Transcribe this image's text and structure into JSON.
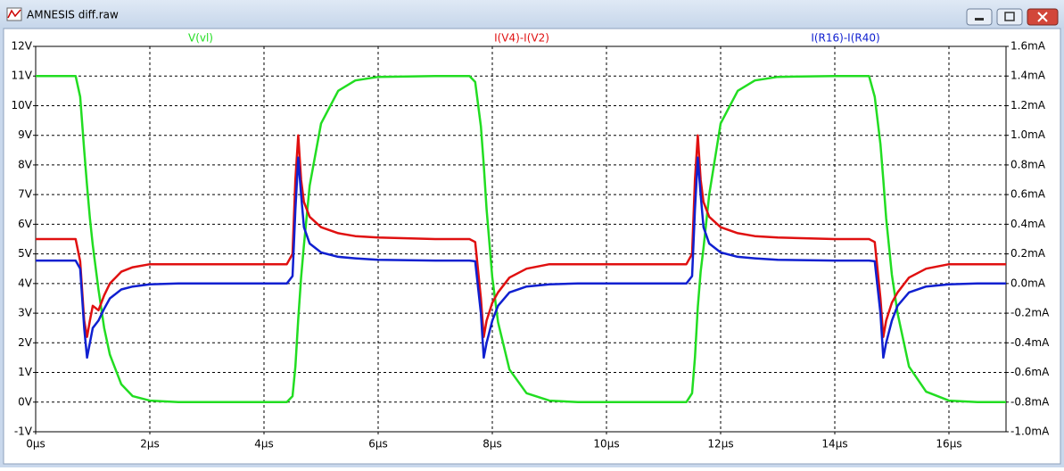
{
  "window": {
    "title": "AMNESIS diff.raw"
  },
  "chart_data": {
    "type": "line",
    "x": [
      0,
      0.7,
      0.78,
      0.85,
      0.9,
      0.95,
      1.0,
      1.1,
      1.2,
      1.3,
      1.5,
      1.7,
      2.0,
      2.5,
      3.0,
      4.4,
      4.5,
      4.55,
      4.6,
      4.65,
      4.7,
      4.8,
      5.0,
      5.3,
      5.6,
      6.0,
      7.0,
      7.6,
      7.7,
      7.8,
      7.85,
      7.9,
      8.0,
      8.1,
      8.3,
      8.6,
      9.0,
      9.5,
      10.0,
      11.4,
      11.5,
      11.55,
      11.6,
      11.65,
      11.7,
      11.8,
      12.0,
      12.3,
      12.6,
      13.0,
      14.0,
      14.6,
      14.7,
      14.8,
      14.85,
      14.9,
      15.0,
      15.1,
      15.3,
      15.6,
      16.0,
      16.5,
      17.0
    ],
    "series": [
      {
        "name": "V(vl)",
        "color": "#22dd22",
        "values": [
          11,
          11,
          10.3,
          8.5,
          7.3,
          6.2,
          5.3,
          3.8,
          2.5,
          1.6,
          0.6,
          0.2,
          0.05,
          0,
          0,
          0,
          0.2,
          1.2,
          2.8,
          4.2,
          5.3,
          7.3,
          9.4,
          10.5,
          10.85,
          10.97,
          11,
          11,
          10.8,
          9.3,
          8.0,
          6.5,
          4.2,
          2.7,
          1.1,
          0.3,
          0.05,
          0,
          0,
          0,
          0.3,
          1.5,
          3.2,
          4.4,
          5.2,
          7.0,
          9.4,
          10.5,
          10.85,
          10.97,
          11,
          11,
          10.3,
          8.7,
          7.5,
          6.2,
          4.3,
          3.0,
          1.2,
          0.35,
          0.05,
          0,
          0
        ]
      },
      {
        "name": "I(V4)-I(V2)",
        "color": "#e01010",
        "axis": "y2",
        "values": [
          0.3,
          0.3,
          0.15,
          -0.25,
          -0.36,
          -0.25,
          -0.15,
          -0.18,
          -0.08,
          0.0,
          0.08,
          0.11,
          0.13,
          0.13,
          0.13,
          0.13,
          0.2,
          0.7,
          1.0,
          0.7,
          0.55,
          0.45,
          0.38,
          0.34,
          0.32,
          0.31,
          0.3,
          0.3,
          0.28,
          -0.1,
          -0.36,
          -0.25,
          -0.13,
          -0.06,
          0.04,
          0.1,
          0.13,
          0.13,
          0.13,
          0.13,
          0.2,
          0.7,
          1.0,
          0.7,
          0.55,
          0.45,
          0.38,
          0.34,
          0.32,
          0.31,
          0.3,
          0.3,
          0.28,
          -0.1,
          -0.36,
          -0.25,
          -0.13,
          -0.06,
          0.04,
          0.1,
          0.13,
          0.13,
          0.13
        ]
      },
      {
        "name": "I(R16)-I(R40)",
        "color": "#1020d0",
        "axis": "y2",
        "values": [
          0.155,
          0.155,
          0.1,
          -0.3,
          -0.5,
          -0.4,
          -0.3,
          -0.25,
          -0.17,
          -0.1,
          -0.04,
          -0.02,
          -0.005,
          0,
          0,
          0,
          0.05,
          0.5,
          0.85,
          0.6,
          0.38,
          0.27,
          0.21,
          0.18,
          0.17,
          0.16,
          0.155,
          0.155,
          0.15,
          -0.2,
          -0.5,
          -0.4,
          -0.25,
          -0.15,
          -0.06,
          -0.02,
          -0.005,
          0,
          0,
          0,
          0.05,
          0.5,
          0.85,
          0.6,
          0.38,
          0.27,
          0.21,
          0.18,
          0.17,
          0.16,
          0.155,
          0.155,
          0.15,
          -0.2,
          -0.5,
          -0.4,
          -0.25,
          -0.15,
          -0.06,
          -0.02,
          -0.005,
          0,
          0
        ]
      }
    ],
    "xlim": [
      0,
      17
    ],
    "xticks": [
      {
        "value": 0,
        "label": "0µs"
      },
      {
        "value": 2,
        "label": "2µs"
      },
      {
        "value": 4,
        "label": "4µs"
      },
      {
        "value": 6,
        "label": "6µs"
      },
      {
        "value": 8,
        "label": "8µs"
      },
      {
        "value": 10,
        "label": "10µs"
      },
      {
        "value": 12,
        "label": "12µs"
      },
      {
        "value": 14,
        "label": "14µs"
      },
      {
        "value": 16,
        "label": "16µs"
      }
    ],
    "ylim": [
      -1,
      12
    ],
    "yticks": [
      {
        "value": -1,
        "label": "-1V"
      },
      {
        "value": 0,
        "label": "0V"
      },
      {
        "value": 1,
        "label": "1V"
      },
      {
        "value": 2,
        "label": "2V"
      },
      {
        "value": 3,
        "label": "3V"
      },
      {
        "value": 4,
        "label": "4V"
      },
      {
        "value": 5,
        "label": "5V"
      },
      {
        "value": 6,
        "label": "6V"
      },
      {
        "value": 7,
        "label": "7V"
      },
      {
        "value": 8,
        "label": "8V"
      },
      {
        "value": 9,
        "label": "9V"
      },
      {
        "value": 10,
        "label": "10V"
      },
      {
        "value": 11,
        "label": "11V"
      },
      {
        "value": 12,
        "label": "12V"
      }
    ],
    "y2lim": [
      -1.0,
      1.6
    ],
    "y2ticks": [
      {
        "value": -1.0,
        "label": "-1.0mA"
      },
      {
        "value": -0.8,
        "label": "-0.8mA"
      },
      {
        "value": -0.6,
        "label": "-0.6mA"
      },
      {
        "value": -0.4,
        "label": "-0.4mA"
      },
      {
        "value": -0.2,
        "label": "-0.2mA"
      },
      {
        "value": 0.0,
        "label": "0.0mA"
      },
      {
        "value": 0.2,
        "label": "0.2mA"
      },
      {
        "value": 0.4,
        "label": "0.4mA"
      },
      {
        "value": 0.6,
        "label": "0.6mA"
      },
      {
        "value": 0.8,
        "label": "0.8mA"
      },
      {
        "value": 1.0,
        "label": "1.0mA"
      },
      {
        "value": 1.2,
        "label": "1.2mA"
      },
      {
        "value": 1.4,
        "label": "1.4mA"
      },
      {
        "value": 1.6,
        "label": "1.6mA"
      }
    ],
    "grid": true
  }
}
